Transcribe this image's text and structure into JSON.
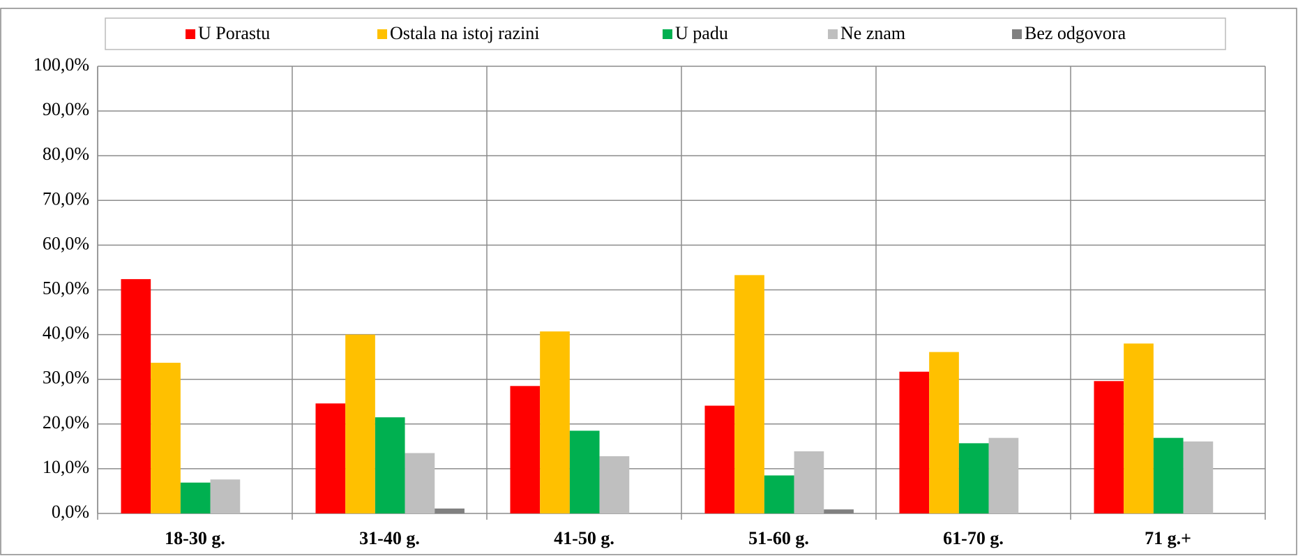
{
  "chart_data": {
    "type": "bar",
    "categories": [
      "18-30 g.",
      "31-40 g.",
      "41-50 g.",
      "51-60 g.",
      "61-70 g.",
      "71 g.+"
    ],
    "series": [
      {
        "name": "U Porastu",
        "color": "#ff0000",
        "values": [
          52.4,
          24.6,
          28.5,
          24.1,
          31.7,
          29.6
        ]
      },
      {
        "name": "Ostala na istoj razini",
        "color": "#ffc000",
        "values": [
          33.7,
          40.0,
          40.7,
          53.3,
          36.1,
          38.0
        ]
      },
      {
        "name": "U padu",
        "color": "#00b050",
        "values": [
          6.9,
          21.5,
          18.5,
          8.5,
          15.7,
          16.9
        ]
      },
      {
        "name": "Ne znam",
        "color": "#bfbfbf",
        "values": [
          7.6,
          13.5,
          12.8,
          13.9,
          16.9,
          16.1
        ]
      },
      {
        "name": "Bez odgovora",
        "color": "#808080",
        "values": [
          0,
          1.1,
          0,
          0.9,
          0,
          0
        ]
      }
    ],
    "ylim": [
      0,
      100
    ],
    "yticks": [
      {
        "value": 0,
        "label": "0,0%"
      },
      {
        "value": 10,
        "label": "10,0%"
      },
      {
        "value": 20,
        "label": "20,0%"
      },
      {
        "value": 30,
        "label": "30,0%"
      },
      {
        "value": 40,
        "label": "40,0%"
      },
      {
        "value": 50,
        "label": "50,0%"
      },
      {
        "value": 60,
        "label": "60,0%"
      },
      {
        "value": 70,
        "label": "70,0%"
      },
      {
        "value": 80,
        "label": "80,0%"
      },
      {
        "value": 90,
        "label": "90,0%"
      },
      {
        "value": 100,
        "label": "100,0%"
      }
    ],
    "grid": true,
    "legend": "top"
  }
}
